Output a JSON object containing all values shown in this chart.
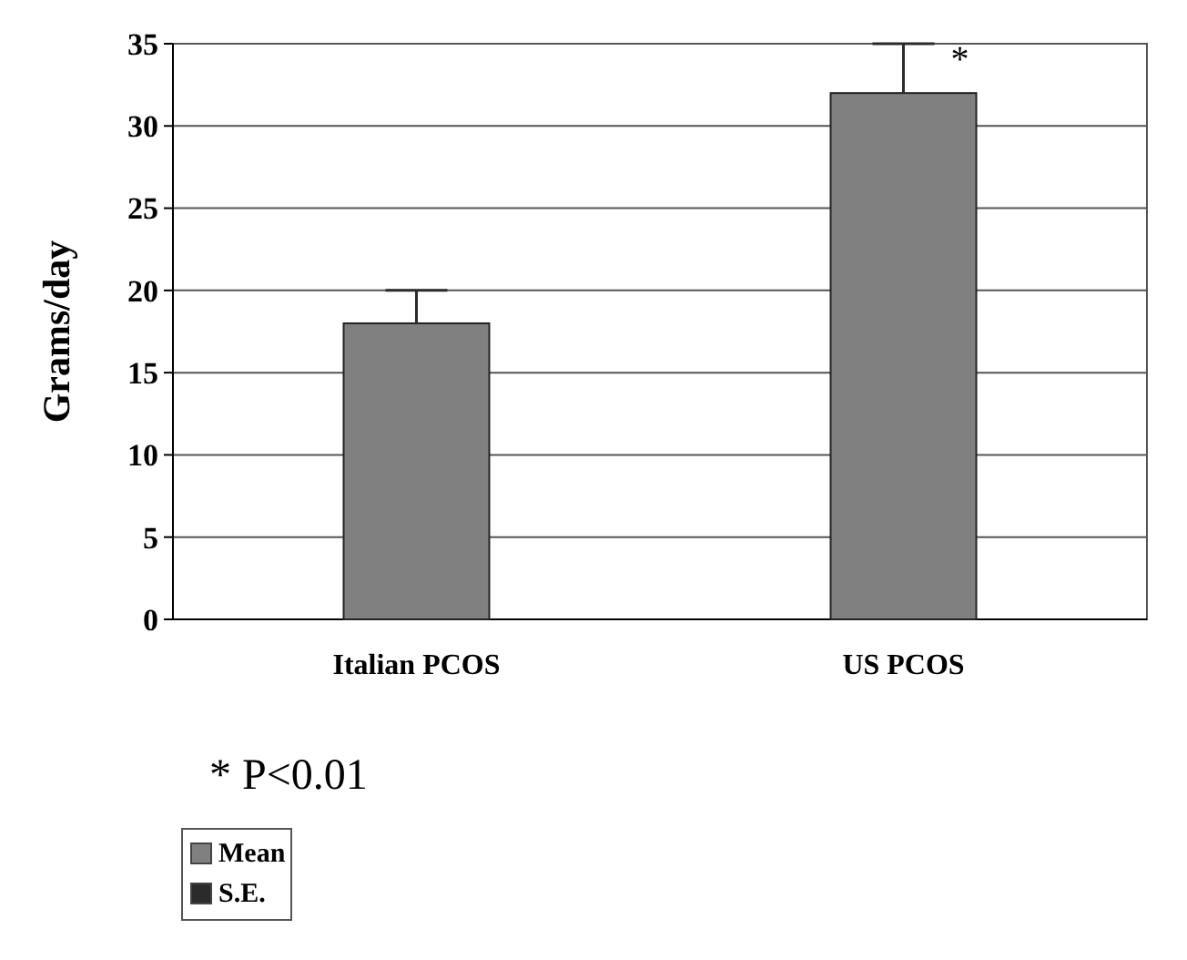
{
  "chart_data": {
    "type": "bar",
    "ylabel": "Grams/day",
    "categories": [
      "Italian PCOS",
      "US PCOS"
    ],
    "series": [
      {
        "name": "Mean",
        "color": "#808080",
        "values": [
          18,
          32
        ],
        "errors": [
          2,
          3
        ]
      },
      {
        "name": "S.E.",
        "color": "#2b2b2b",
        "values": [
          null,
          null
        ]
      }
    ],
    "ylim": [
      0,
      35
    ],
    "yticks": [
      0,
      5,
      10,
      15,
      20,
      25,
      30,
      35
    ],
    "grid": "y",
    "legend": "bottom left",
    "annotations": [
      "*",
      "* P<0.01"
    ]
  }
}
